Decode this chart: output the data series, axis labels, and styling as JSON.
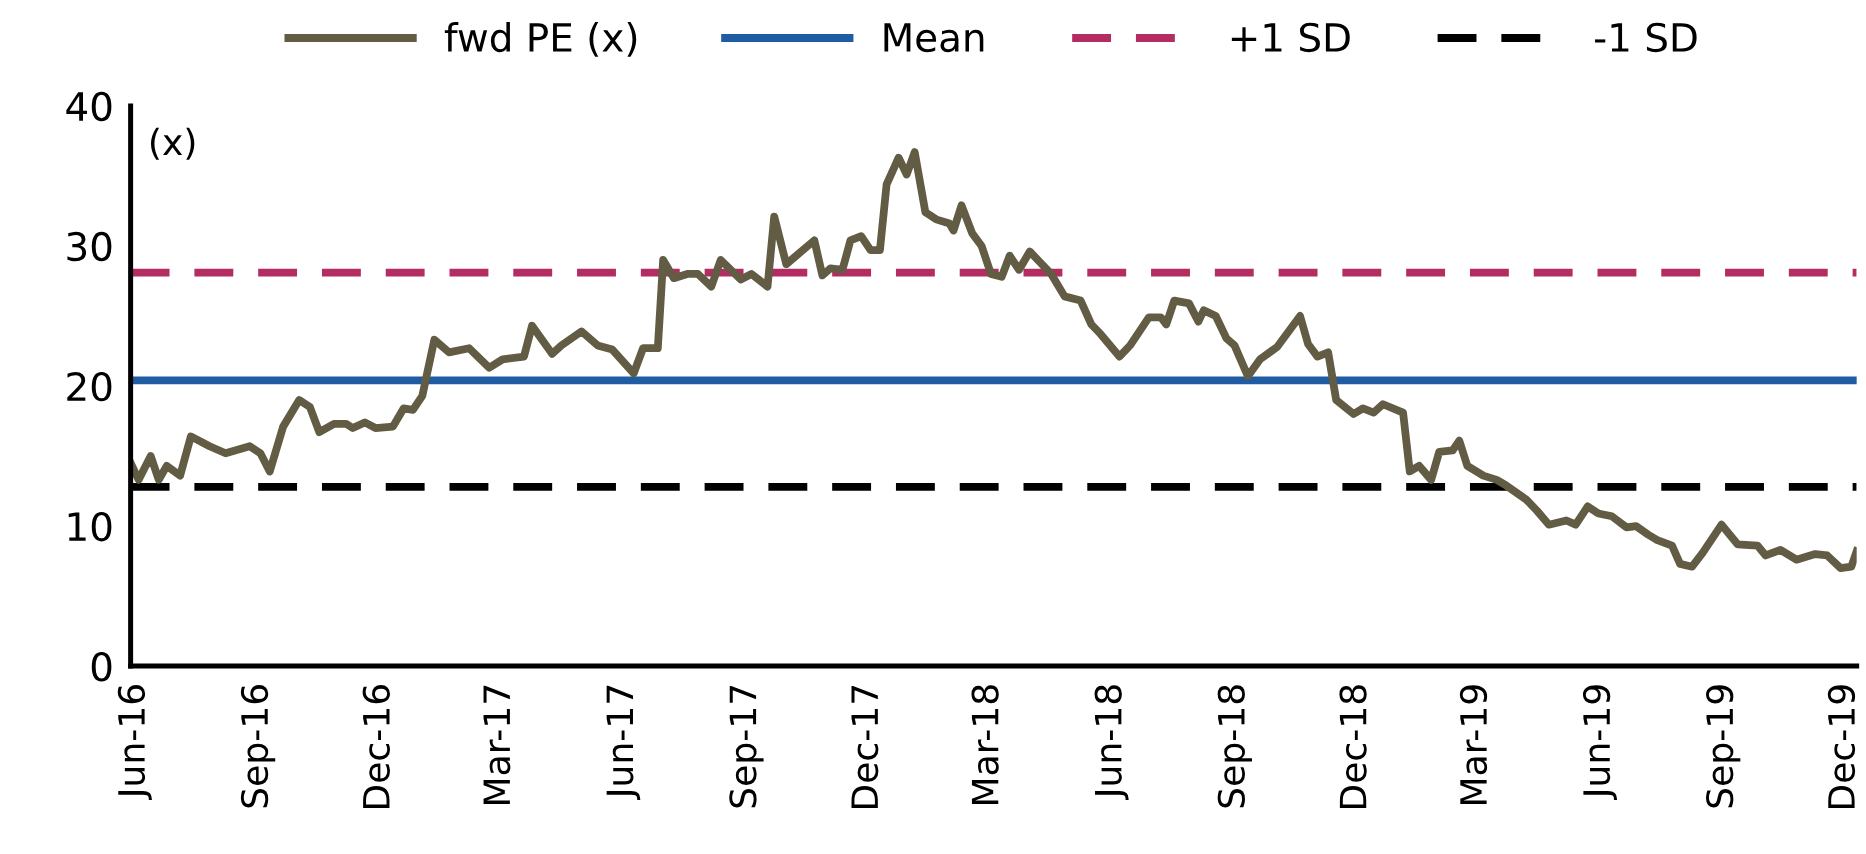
{
  "chart_data": {
    "type": "line",
    "ylabel": "(x)",
    "legend": "top",
    "grid": false,
    "marker": "none",
    "x": [
      "2016-05-29",
      "2016-06-04",
      "2016-06-13",
      "2016-06-19",
      "2016-06-25",
      "2016-07-05",
      "2016-07-13",
      "2016-07-27",
      "2016-08-08",
      "2016-08-26",
      "2016-09-03",
      "2016-09-10",
      "2016-09-20",
      "2016-10-02",
      "2016-10-10",
      "2016-10-17",
      "2016-10-28",
      "2016-11-06",
      "2016-11-11",
      "2016-11-20",
      "2016-11-28",
      "2016-12-11",
      "2016-12-19",
      "2016-12-26",
      "2017-01-02",
      "2017-01-11",
      "2017-01-22",
      "2017-02-06",
      "2017-02-21",
      "2017-03-03",
      "2017-03-19",
      "2017-03-25",
      "2017-04-09",
      "2017-04-16",
      "2017-05-01",
      "2017-05-13",
      "2017-05-24",
      "2017-06-09",
      "2017-06-16",
      "2017-06-27",
      "2017-07-01",
      "2017-07-09",
      "2017-07-19",
      "2017-07-27",
      "2017-08-06",
      "2017-08-13",
      "2017-08-28",
      "2017-09-05",
      "2017-09-17",
      "2017-09-22",
      "2017-10-01",
      "2017-10-22",
      "2017-10-28",
      "2017-11-03",
      "2017-11-12",
      "2017-11-18",
      "2017-11-26",
      "2017-12-03",
      "2017-12-10",
      "2017-12-15",
      "2017-12-24",
      "2017-12-30",
      "2018-01-05",
      "2018-01-13",
      "2018-01-21",
      "2018-01-31",
      "2018-02-03",
      "2018-02-09",
      "2018-02-17",
      "2018-02-24",
      "2018-03-03",
      "2018-03-11",
      "2018-03-17",
      "2018-03-24",
      "2018-04-01",
      "2018-04-10",
      "2018-04-17",
      "2018-04-27",
      "2018-05-09",
      "2018-05-17",
      "2018-05-24",
      "2018-06-07",
      "2018-06-15",
      "2018-06-29",
      "2018-07-08",
      "2018-07-12",
      "2018-07-18",
      "2018-07-29",
      "2018-08-05",
      "2018-08-09",
      "2018-08-18",
      "2018-08-26",
      "2018-09-01",
      "2018-09-11",
      "2018-09-20",
      "2018-10-03",
      "2018-10-20",
      "2018-10-26",
      "2018-11-02",
      "2018-11-10",
      "2018-11-16",
      "2018-11-29",
      "2018-12-06",
      "2018-12-14",
      "2018-12-21",
      "2019-01-05",
      "2019-01-10",
      "2019-01-17",
      "2019-01-26",
      "2019-02-01",
      "2019-02-11",
      "2019-02-16",
      "2019-02-22",
      "2019-03-06",
      "2019-03-16",
      "2019-03-23",
      "2019-04-07",
      "2019-04-15",
      "2019-04-24",
      "2019-05-07",
      "2019-05-14",
      "2019-05-23",
      "2019-05-31",
      "2019-06-10",
      "2019-06-21",
      "2019-06-28",
      "2019-07-07",
      "2019-07-14",
      "2019-07-25",
      "2019-07-31",
      "2019-08-09",
      "2019-08-17",
      "2019-08-31",
      "2019-09-12",
      "2019-09-27",
      "2019-10-03",
      "2019-10-14",
      "2019-10-26",
      "2019-11-09",
      "2019-11-18",
      "2019-11-28",
      "2019-12-06",
      "2019-12-10"
    ],
    "series": [
      {
        "name": "fwd PE (x)",
        "color": "#625c45",
        "values": [
          14.5,
          13.3,
          15.0,
          13.3,
          14.3,
          13.6,
          16.4,
          15.7,
          15.2,
          15.7,
          15.2,
          13.9,
          17.1,
          19.0,
          18.5,
          16.7,
          17.3,
          17.3,
          17.0,
          17.4,
          17.0,
          17.1,
          18.4,
          18.3,
          19.3,
          23.3,
          22.4,
          22.7,
          21.3,
          21.9,
          22.1,
          24.3,
          22.3,
          22.9,
          23.9,
          22.9,
          22.6,
          20.9,
          22.7,
          22.7,
          29.0,
          27.7,
          28.0,
          28.0,
          27.1,
          29.0,
          27.6,
          28.0,
          27.1,
          32.1,
          28.7,
          30.4,
          27.9,
          28.4,
          28.3,
          30.4,
          30.7,
          29.7,
          29.7,
          34.4,
          36.3,
          35.1,
          36.7,
          32.4,
          31.9,
          31.6,
          31.1,
          32.9,
          30.9,
          30.0,
          28.0,
          27.8,
          29.3,
          28.3,
          29.6,
          28.7,
          28.0,
          26.4,
          26.1,
          24.4,
          23.7,
          22.1,
          22.9,
          24.9,
          24.9,
          24.4,
          26.1,
          25.9,
          24.6,
          25.4,
          25.0,
          23.4,
          22.9,
          20.7,
          21.9,
          22.8,
          25.0,
          23.0,
          22.1,
          22.4,
          19.0,
          18.0,
          18.4,
          18.1,
          18.7,
          18.1,
          13.9,
          14.3,
          13.3,
          15.3,
          15.4,
          16.1,
          14.3,
          13.6,
          13.3,
          12.9,
          11.9,
          11.1,
          10.1,
          10.4,
          10.1,
          11.4,
          10.9,
          10.7,
          9.9,
          10.0,
          9.4,
          9.0,
          8.6,
          7.3,
          7.1,
          8.1,
          10.1,
          8.7,
          8.6,
          7.9,
          8.3,
          7.6,
          8.0,
          7.9,
          7.0,
          7.1,
          8.2
        ]
      }
    ],
    "ref_lines": [
      {
        "axis": "y",
        "value": 20.4,
        "label": "Mean",
        "color": "#1f5ca3",
        "line_style": "solid"
      },
      {
        "axis": "y",
        "value": 28.1,
        "label": "+1 SD",
        "color": "#b32d62",
        "line_style": "dashed"
      },
      {
        "axis": "y",
        "value": 12.8,
        "label": "-1 SD",
        "color": "#000000",
        "line_style": "dashed"
      }
    ],
    "xlim": [
      "2016-05-29",
      "2019-12-10"
    ],
    "xticks": [
      {
        "value": "2016-06-01",
        "label": "Jun-16"
      },
      {
        "value": "2016-09-01",
        "label": "Sep-16"
      },
      {
        "value": "2016-12-01",
        "label": "Dec-16"
      },
      {
        "value": "2017-03-01",
        "label": "Mar-17"
      },
      {
        "value": "2017-06-01",
        "label": "Jun-17"
      },
      {
        "value": "2017-09-01",
        "label": "Sep-17"
      },
      {
        "value": "2017-12-01",
        "label": "Dec-17"
      },
      {
        "value": "2018-03-01",
        "label": "Mar-18"
      },
      {
        "value": "2018-06-01",
        "label": "Jun-18"
      },
      {
        "value": "2018-09-01",
        "label": "Sep-18"
      },
      {
        "value": "2018-12-01",
        "label": "Dec-18"
      },
      {
        "value": "2019-03-01",
        "label": "Mar-19"
      },
      {
        "value": "2019-06-01",
        "label": "Jun-19"
      },
      {
        "value": "2019-09-01",
        "label": "Sep-19"
      },
      {
        "value": "2019-12-01",
        "label": "Dec-19"
      }
    ],
    "ylim": [
      0,
      40
    ],
    "yticks": [
      0,
      10,
      20,
      30,
      40
    ]
  }
}
